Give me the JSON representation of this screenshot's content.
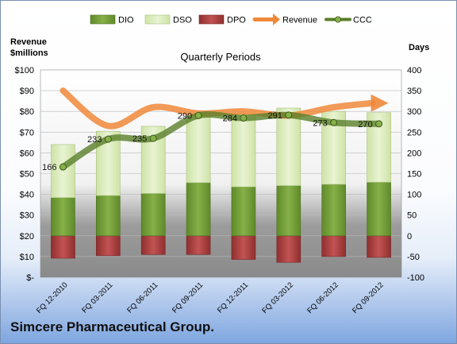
{
  "company": "Simcere Pharmaceutical Group.",
  "chart_data": {
    "type": "bar",
    "title": "Quarterly Periods",
    "left_axis_label_line1": "Revenue",
    "left_axis_label_line2": "$millions",
    "right_axis_label": "Days",
    "categories": [
      "FQ 12-2010",
      "FQ 03-2011",
      "FQ 06-2011",
      "FQ 09-2011",
      "FQ 12-2011",
      "FQ 03-2012",
      "FQ 06-2012",
      "FQ 09-2012"
    ],
    "left_ylim": [
      0,
      100
    ],
    "left_ticks": [
      "$-",
      "$10",
      "$20",
      "$30",
      "$40",
      "$50",
      "$60",
      "$70",
      "$80",
      "$90",
      "$100"
    ],
    "right_ylim": [
      -100,
      400
    ],
    "right_ticks": [
      "-100",
      "-50",
      "0",
      "50",
      "100",
      "150",
      "200",
      "250",
      "300",
      "350",
      "400"
    ],
    "legend_position": "top",
    "series": [
      {
        "name": "DIO",
        "kind": "stacked-bar",
        "axis": "days",
        "color": "#6e9a33",
        "values": [
          92,
          97,
          102,
          128,
          118,
          121,
          124,
          129
        ]
      },
      {
        "name": "DSO",
        "kind": "stacked-bar",
        "axis": "days",
        "color": "#d3e6b1",
        "values": [
          128,
          155,
          162,
          160,
          177,
          187,
          176,
          168
        ]
      },
      {
        "name": "DPO",
        "kind": "bar-negative",
        "axis": "days",
        "color": "#a33b3b",
        "values": [
          -54,
          -48,
          -45,
          -45,
          -57,
          -64,
          -50,
          -52
        ]
      },
      {
        "name": "Revenue",
        "kind": "line",
        "axis": "revenue",
        "color": "#f0883a",
        "values": [
          90,
          73,
          82,
          79,
          80,
          78,
          82,
          84
        ]
      },
      {
        "name": "CCC",
        "kind": "line-markers",
        "axis": "days",
        "color": "#5a7f2a",
        "values": [
          166,
          233,
          235,
          290,
          284,
          291,
          273,
          270
        ],
        "labels": [
          "166",
          "233",
          "235",
          "290",
          "284",
          "291",
          "273",
          "270"
        ]
      }
    ]
  }
}
